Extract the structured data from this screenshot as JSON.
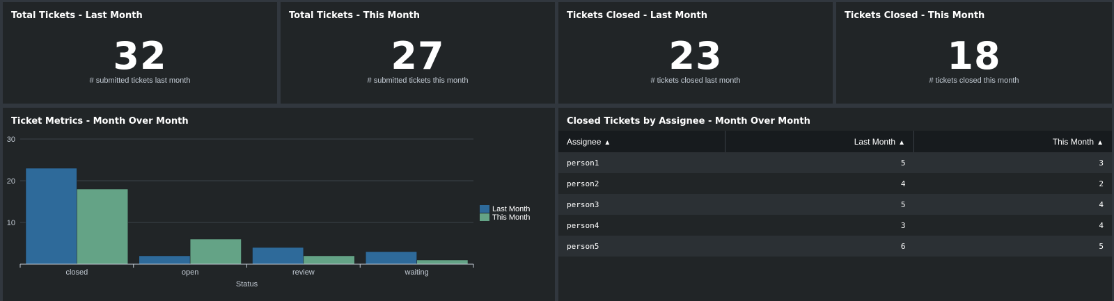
{
  "single_values": [
    {
      "title": "Total Tickets - Last Month",
      "value": "32",
      "caption": "# submitted tickets last month"
    },
    {
      "title": "Total Tickets - This Month",
      "value": "27",
      "caption": "# submitted tickets this month"
    },
    {
      "title": "Tickets Closed - Last Month",
      "value": "23",
      "caption": "# tickets closed last month"
    },
    {
      "title": "Tickets Closed - This Month",
      "value": "18",
      "caption": "# tickets closed this month"
    }
  ],
  "chart_panel": {
    "title": "Ticket Metrics - Month Over Month"
  },
  "chart_data": {
    "type": "bar",
    "categories": [
      "closed",
      "open",
      "review",
      "waiting"
    ],
    "series": [
      {
        "name": "Last Month",
        "values": [
          23,
          2,
          4,
          3
        ],
        "color": "#2e6a9a"
      },
      {
        "name": "This Month",
        "values": [
          18,
          6,
          2,
          1
        ],
        "color": "#64a386"
      }
    ],
    "xlabel": "Status",
    "ylabel": "",
    "ylim": [
      0,
      30
    ],
    "yticks": [
      "10",
      "20",
      "30"
    ],
    "grid": true,
    "legend": "right"
  },
  "table_panel": {
    "title": "Closed Tickets by Assignee - Month Over Month",
    "columns": [
      "Assignee",
      "Last Month",
      "This Month"
    ],
    "sort_icon": "sort-icon",
    "rows": [
      {
        "assignee": "person1",
        "last": "5",
        "this": "3"
      },
      {
        "assignee": "person2",
        "last": "4",
        "this": "2"
      },
      {
        "assignee": "person3",
        "last": "5",
        "this": "4"
      },
      {
        "assignee": "person4",
        "last": "3",
        "this": "4"
      },
      {
        "assignee": "person5",
        "last": "6",
        "this": "5"
      }
    ]
  }
}
